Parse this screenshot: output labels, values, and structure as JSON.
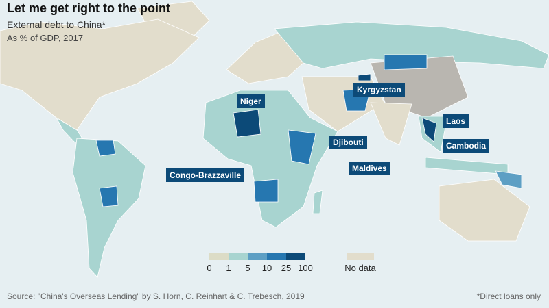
{
  "header": {
    "title": "Let me get right to the point",
    "subtitle": "External debt to China*",
    "unit": "As % of GDP, 2017"
  },
  "legend": {
    "bin_colors": [
      "#dcdcc6",
      "#a8d4d0",
      "#5d9fc4",
      "#2677b0",
      "#0c4a78"
    ],
    "ticks": [
      0,
      1,
      5,
      10,
      25,
      100
    ],
    "no_data": {
      "label": "No data",
      "color": "#e2ddcc"
    }
  },
  "labels": [
    {
      "text": "Niger"
    },
    {
      "text": "Kyrgyzstan"
    },
    {
      "text": "Laos"
    },
    {
      "text": "Djibouti"
    },
    {
      "text": "Cambodia"
    },
    {
      "text": "Maldives"
    },
    {
      "text": "Congo-Brazzaville"
    }
  ],
  "footer": {
    "source": "Source: \"China's Overseas Lending\" by S. Horn, C. Reinhart & C. Trebesch, 2019",
    "note": "*Direct loans only"
  }
}
